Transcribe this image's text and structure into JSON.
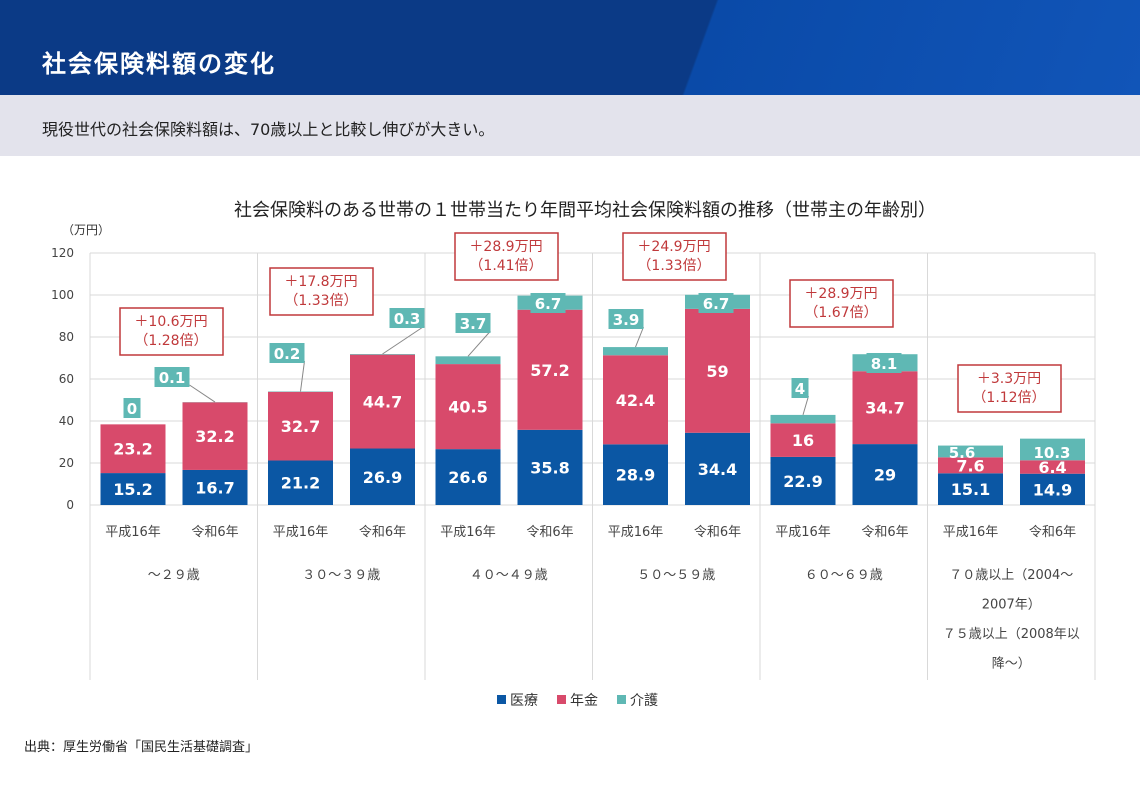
{
  "header": {
    "title": "社会保険料額の変化"
  },
  "subtitle": "現役世代の社会保険料額は、70歳以上と比較し伸びが大きい。",
  "source": "出典：厚生労働省「国民生活基礎調査」",
  "chart_data": {
    "type": "bar",
    "stacked": true,
    "title": "社会保険料のある世帯の１世帯当たり年間平均社会保険料額の推移（世帯主の年齢別）",
    "ylabel": "（万円）",
    "ylim": [
      0,
      120
    ],
    "yticks": [
      0,
      20,
      40,
      60,
      80,
      100,
      120
    ],
    "grid": true,
    "legend_position": "bottom",
    "colors": {
      "医療": "#0b57a4",
      "年金": "#d84a6b",
      "介護": "#5fb8b4"
    },
    "groups": [
      {
        "label": [
          "～２９歳"
        ],
        "annotation": [
          "＋10.6万円",
          "（1.28倍）"
        ]
      },
      {
        "label": [
          "３０～３９歳"
        ],
        "annotation": [
          "＋17.8万円",
          "（1.33倍）"
        ]
      },
      {
        "label": [
          "４０～４９歳"
        ],
        "annotation": [
          "＋28.9万円",
          "（1.41倍）"
        ]
      },
      {
        "label": [
          "５０～５９歳"
        ],
        "annotation": [
          "＋24.9万円",
          "（1.33倍）"
        ]
      },
      {
        "label": [
          "６０～６９歳"
        ],
        "annotation": [
          "＋28.9万円",
          "（1.67倍）"
        ]
      },
      {
        "label": [
          "７０歳以上（2004～",
          "2007年）",
          "７５歳以上（2008年以",
          "降～）"
        ],
        "annotation": [
          "＋3.3万円",
          "（1.12倍）"
        ]
      }
    ],
    "categories": [
      "平成16年",
      "令和6年",
      "平成16年",
      "令和6年",
      "平成16年",
      "令和6年",
      "平成16年",
      "令和6年",
      "平成16年",
      "令和6年",
      "平成16年",
      "令和6年"
    ],
    "series": [
      {
        "name": "医療",
        "values": [
          15.2,
          16.7,
          21.2,
          26.9,
          26.6,
          35.8,
          28.9,
          34.4,
          22.9,
          29,
          15.1,
          14.9
        ]
      },
      {
        "name": "年金",
        "values": [
          23.2,
          32.2,
          32.7,
          44.7,
          40.5,
          57.2,
          42.4,
          59,
          16,
          34.7,
          7.6,
          6.4
        ]
      },
      {
        "name": "介護",
        "values": [
          0,
          0.1,
          0.2,
          0.3,
          3.7,
          6.7,
          3.9,
          6.7,
          4,
          8.1,
          5.6,
          10.3
        ]
      }
    ]
  }
}
